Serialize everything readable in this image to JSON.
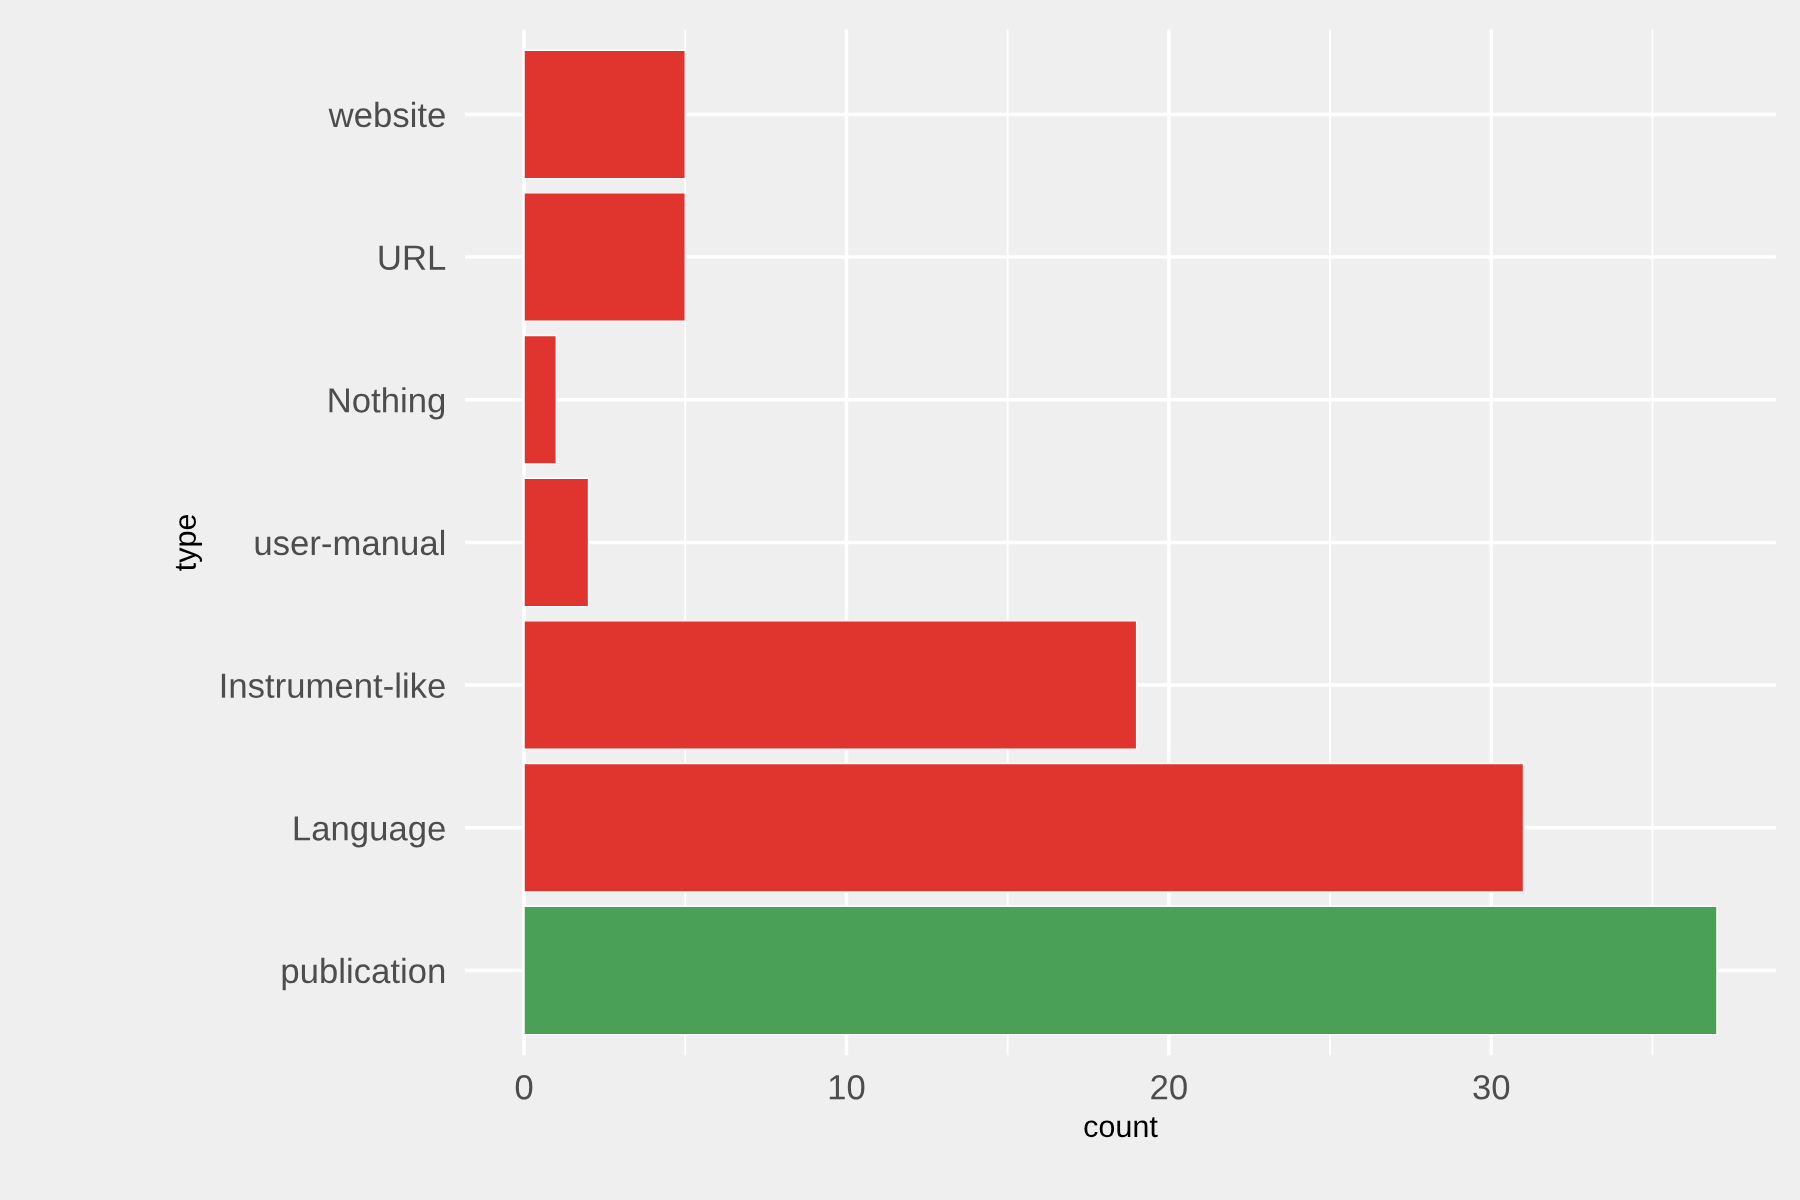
{
  "chart_data": {
    "type": "bar",
    "orientation": "horizontal",
    "categories": [
      "website",
      "URL",
      "Nothing",
      "user-manual",
      "Instrument-like",
      "Language",
      "publication"
    ],
    "values": [
      5,
      5,
      1,
      2,
      19,
      31,
      37
    ],
    "colors": [
      "#e0352f",
      "#e0352f",
      "#e0352f",
      "#e0352f",
      "#e0352f",
      "#e0352f",
      "#4aa056"
    ],
    "xlabel": "count",
    "ylabel": "type",
    "xlim": [
      -1.85,
      38.85
    ],
    "xticks": [
      0,
      10,
      20,
      30
    ],
    "grid": true
  }
}
